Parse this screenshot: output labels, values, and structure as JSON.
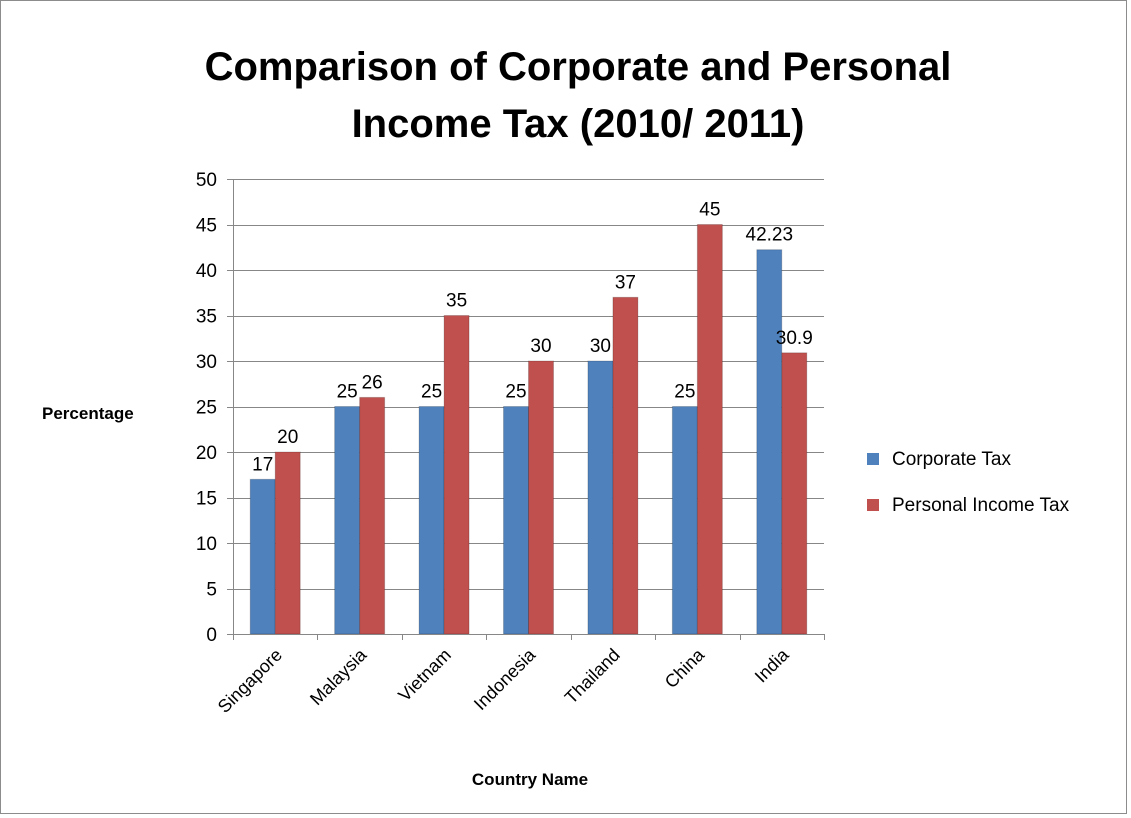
{
  "chart_data": {
    "type": "bar",
    "title_lines": [
      "Comparison of Corporate and Personal",
      "Income Tax (2010/ 2011)"
    ],
    "xlabel": "Country Name",
    "ylabel": "Percentage",
    "categories": [
      "Singapore",
      "Malaysia",
      "Vietnam",
      "Indonesia",
      "Thailand",
      "China",
      "India"
    ],
    "series": [
      {
        "name": "Corporate Tax",
        "color": "#4F81BD",
        "values": [
          17,
          25,
          25,
          25,
          30,
          25,
          42.23
        ],
        "labels": [
          "17",
          "25",
          "25",
          "25",
          "30",
          "25",
          "42.23"
        ]
      },
      {
        "name": "Personal Income Tax",
        "color": "#C0504D",
        "values": [
          20,
          26,
          35,
          30,
          37,
          45,
          30.9
        ],
        "labels": [
          "20",
          "26",
          "35",
          "30",
          "37",
          "45",
          "30.9"
        ]
      }
    ],
    "ylim": [
      0,
      50
    ],
    "yticks": [
      0,
      5,
      10,
      15,
      20,
      25,
      30,
      35,
      40,
      45,
      50
    ],
    "grid": true,
    "legend_position": "right"
  }
}
